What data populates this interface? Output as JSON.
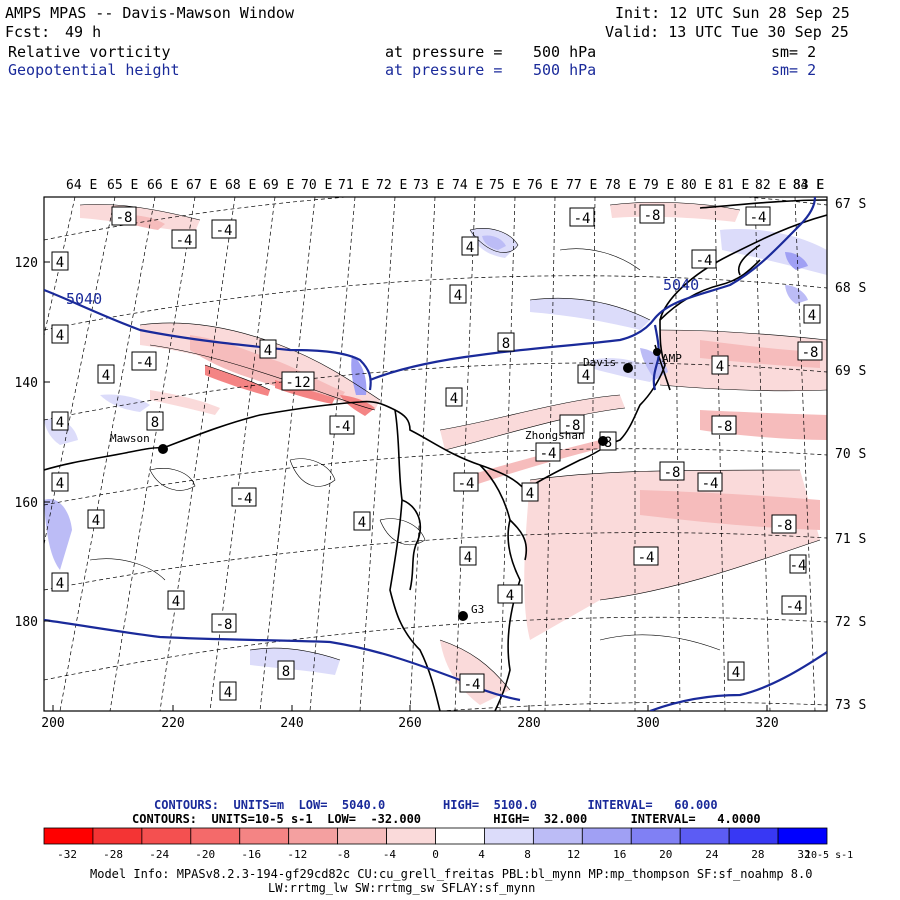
{
  "header": {
    "title": "AMPS MPAS -- Davis-Mawson Window",
    "init": "Init: 12 UTC Sun 28 Sep 25",
    "fcst_label": "Fcst:",
    "fcst_value": "49 h",
    "valid": "Valid: 13 UTC Tue 30 Sep 25"
  },
  "fields": [
    {
      "name": "Relative vorticity",
      "pressure_label": "at pressure =",
      "pressure_value": "500 hPa",
      "sm": "sm= 2"
    },
    {
      "name": "Geopotential height",
      "pressure_label": "at pressure =",
      "pressure_value": "500 hPa",
      "sm": "sm= 2"
    }
  ],
  "lon_labels": [
    "64 E",
    "65 E",
    "66 E",
    "67 E",
    "68 E",
    "69 E",
    "70 E",
    "71 E",
    "72 E",
    "73 E",
    "74 E",
    "75 E",
    "76 E",
    "77 E",
    "78 E",
    "79 E",
    "80 E",
    "81 E",
    "82 E",
    "83 E",
    "84 E"
  ],
  "lat_labels": [
    "67 S",
    "68 S",
    "69 S",
    "70 S",
    "71 S",
    "72 S",
    "73 S"
  ],
  "y_ticks": [
    "120",
    "140",
    "160",
    "180"
  ],
  "x_ticks": [
    "200",
    "220",
    "240",
    "260",
    "280",
    "300",
    "320"
  ],
  "stations": [
    {
      "name": "Mawson"
    },
    {
      "name": "Davis"
    },
    {
      "name": "Zhongshan"
    },
    {
      "name": "G3"
    },
    {
      "name": "AMP"
    }
  ],
  "height_contour_labels": [
    "5040",
    "5040"
  ],
  "vort_labels": [
    "-8",
    "-4",
    "-4",
    "-4",
    "-8",
    "-4",
    "-4",
    "4",
    "4",
    "4",
    "4",
    "-12",
    "4",
    "-4",
    "8",
    "4",
    "4",
    "-4",
    "4",
    "8",
    "4",
    "-8",
    "4",
    "-4",
    "-4",
    "8",
    "4",
    "4",
    "-8",
    "4",
    "4",
    "-4",
    "-8",
    "-8",
    "-4",
    "-4",
    "-4",
    "4",
    "4",
    "8",
    "4",
    "-8",
    "4",
    "-4",
    "4",
    "-4",
    "4",
    "4",
    "-8"
  ],
  "legend": {
    "line1_label": "CONTOURS:",
    "line1_units": "UNITS=m",
    "line1_low": "LOW=",
    "line1_low_val": "5040.0",
    "line1_high": "HIGH=",
    "line1_high_val": "5100.0",
    "line1_interval": "INTERVAL=",
    "line1_interval_val": "60.000",
    "line2_label": "CONTOURS:",
    "line2_units": "UNITS=10-5 s-1",
    "line2_low": "LOW=",
    "line2_low_val": "-32.000",
    "line2_high": "HIGH=",
    "line2_high_val": "32.000",
    "line2_interval": "INTERVAL=",
    "line2_interval_val": "4.0000"
  },
  "colorbar": {
    "ticks": [
      "-32",
      "-28",
      "-24",
      "-20",
      "-16",
      "-12",
      "-8",
      "-4",
      "0",
      "4",
      "8",
      "12",
      "16",
      "20",
      "24",
      "28",
      "32"
    ],
    "units": "10-5 s-1",
    "colors": [
      "#ff0000",
      "#f43434",
      "#f45050",
      "#f46a6a",
      "#f48484",
      "#f4a0a0",
      "#f6bcbc",
      "#fadada",
      "#ffffff",
      "#ffffff",
      "#dcdcfa",
      "#bcbcf6",
      "#a0a0f4",
      "#8080f4",
      "#5c5cf4",
      "#3838f4",
      "#0000ff"
    ]
  },
  "footer": {
    "line1": "Model Info: MPASv8.2.3-194-gf29cd82c CU:cu_grell_freitas PBL:bl_mynn MP:mp_thompson SF:sf_noahmp 8.0",
    "line2": "LW:rrtmg_lw SW:rrtmg_sw SFLAY:sf_mynn"
  },
  "colors": {
    "height_contour": "#1a2a9a",
    "text_blue": "#1a2a9a"
  }
}
